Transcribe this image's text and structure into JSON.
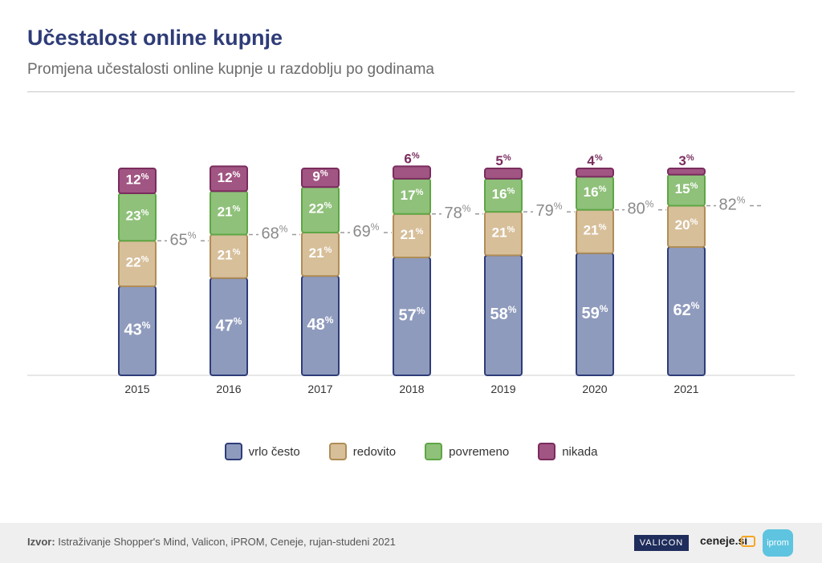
{
  "header": {
    "title": "Učestalost online kupnje",
    "subtitle": "Promjena učestalosti online kupnje u razdoblju po godinama"
  },
  "colors": {
    "vrlo_cesto": "#8f9bbd",
    "vrlo_cesto_border": "#2e3c78",
    "redovito": "#d7bf9a",
    "redovito_border": "#b08d57",
    "povremeno": "#8fc17a",
    "povremeno_border": "#5ea645",
    "nikada": "#a15582",
    "nikada_border": "#7a2c5e",
    "total_line": "#9a9a9a",
    "title": "#2e3c78"
  },
  "chart_data": {
    "type": "bar",
    "stacked": true,
    "categories": [
      "2015",
      "2016",
      "2017",
      "2018",
      "2019",
      "2020",
      "2021"
    ],
    "series": [
      {
        "name": "vrlo često",
        "values": [
          43,
          47,
          48,
          57,
          58,
          59,
          62
        ]
      },
      {
        "name": "redovito",
        "values": [
          22,
          21,
          21,
          21,
          21,
          21,
          20
        ]
      },
      {
        "name": "povremeno",
        "values": [
          23,
          21,
          22,
          17,
          16,
          16,
          15
        ]
      },
      {
        "name": "nikada",
        "values": [
          12,
          12,
          9,
          6,
          5,
          4,
          3
        ]
      }
    ],
    "totals_label": [
      65,
      68,
      69,
      78,
      79,
      80,
      82
    ],
    "unit": "%",
    "ylim": [
      0,
      100
    ],
    "legend_position": "bottom"
  },
  "legend": {
    "items": [
      {
        "label": "vrlo često",
        "key": "vrlo_cesto"
      },
      {
        "label": "redovito",
        "key": "redovito"
      },
      {
        "label": "povremeno",
        "key": "povremeno"
      },
      {
        "label": "nikada",
        "key": "nikada"
      }
    ]
  },
  "footer": {
    "source_label": "Izvor:",
    "source_text": " Istraživanje Shopper's Mind, Valicon, iPROM, Ceneje, rujan-studeni 2021",
    "logos": {
      "valicon": "VALICON",
      "ceneje": "ceneje.si",
      "iprom": "iprom"
    }
  }
}
